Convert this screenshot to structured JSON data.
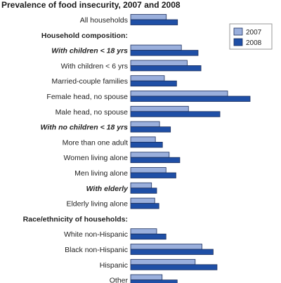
{
  "chart_data": {
    "type": "bar",
    "orientation": "horizontal",
    "title": "Prevalence of food insecurity, 2007 and 2008",
    "legend_position": "top-right",
    "grid": false,
    "xlim": [
      0,
      40
    ],
    "series": [
      {
        "name": "2007",
        "color": "#9aafdc"
      },
      {
        "name": "2008",
        "color": "#1f4fa6"
      }
    ],
    "rows": [
      {
        "label": "All households",
        "style": "normal",
        "values": [
          11.1,
          14.6
        ]
      },
      {
        "label": "Household composition:",
        "style": "heading"
      },
      {
        "label": "With children < 18 yrs",
        "style": "bold-italic",
        "values": [
          15.8,
          21.0
        ]
      },
      {
        "label": "With children < 6 yrs",
        "style": "normal",
        "values": [
          17.6,
          21.9
        ]
      },
      {
        "label": "Married-couple families",
        "style": "normal",
        "values": [
          10.5,
          14.3
        ]
      },
      {
        "label": "Female head, no spouse",
        "style": "normal",
        "values": [
          30.2,
          37.2
        ]
      },
      {
        "label": "Male head, no spouse",
        "style": "normal",
        "values": [
          18.0,
          27.8
        ]
      },
      {
        "label": "With no children < 18 yrs",
        "style": "bold-italic",
        "values": [
          9.0,
          12.4
        ]
      },
      {
        "label": "More than one adult",
        "style": "normal",
        "values": [
          7.7,
          9.9
        ]
      },
      {
        "label": "Women living alone",
        "style": "normal",
        "values": [
          12.0,
          15.3
        ]
      },
      {
        "label": "Men living alone",
        "style": "normal",
        "values": [
          11.0,
          14.1
        ]
      },
      {
        "label": "With elderly",
        "style": "bold-italic",
        "values": [
          6.5,
          8.1
        ]
      },
      {
        "label": "Elderly living alone",
        "style": "normal",
        "values": [
          7.5,
          8.8
        ]
      },
      {
        "label": "Race/ethnicity of households:",
        "style": "heading"
      },
      {
        "label": "White non-Hispanic",
        "style": "normal",
        "values": [
          8.1,
          11.0
        ]
      },
      {
        "label": "Black non-Hispanic",
        "style": "normal",
        "values": [
          22.2,
          25.7
        ]
      },
      {
        "label": "Hispanic",
        "style": "normal",
        "values": [
          20.1,
          26.9
        ]
      },
      {
        "label": "Other",
        "style": "normal",
        "values": [
          9.8,
          14.5
        ]
      }
    ]
  }
}
